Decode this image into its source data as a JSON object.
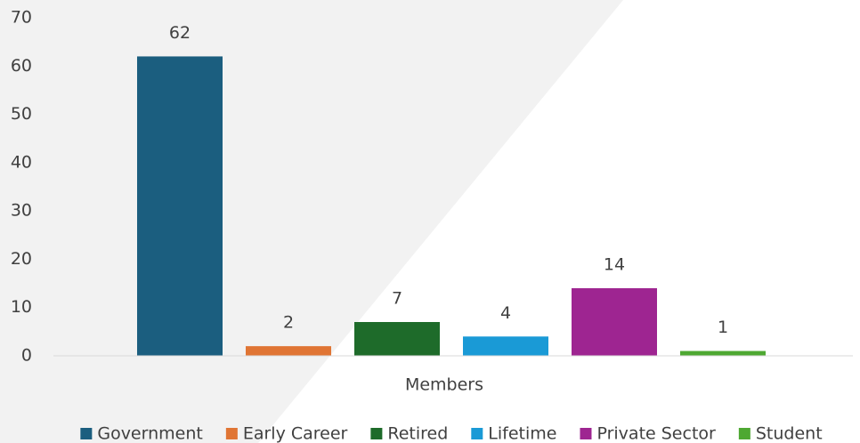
{
  "chart_data": {
    "type": "bar",
    "categories": [
      "Members"
    ],
    "series": [
      {
        "name": "Government",
        "color": "#1b5e7f",
        "values": [
          62
        ]
      },
      {
        "name": "Early Career",
        "color": "#e07534",
        "values": [
          2
        ]
      },
      {
        "name": "Retired",
        "color": "#1e6b2a",
        "values": [
          7
        ]
      },
      {
        "name": "Lifetime",
        "color": "#1a9ad6",
        "values": [
          4
        ]
      },
      {
        "name": "Private Sector",
        "color": "#9e2591",
        "values": [
          14
        ]
      },
      {
        "name": "Student",
        "color": "#4ea832",
        "values": [
          1
        ]
      }
    ],
    "ylim": [
      0,
      70
    ],
    "yticks": [
      0,
      10,
      20,
      30,
      40,
      50,
      60,
      70
    ],
    "grid": false,
    "legend": "bottom",
    "data_labels": true
  }
}
